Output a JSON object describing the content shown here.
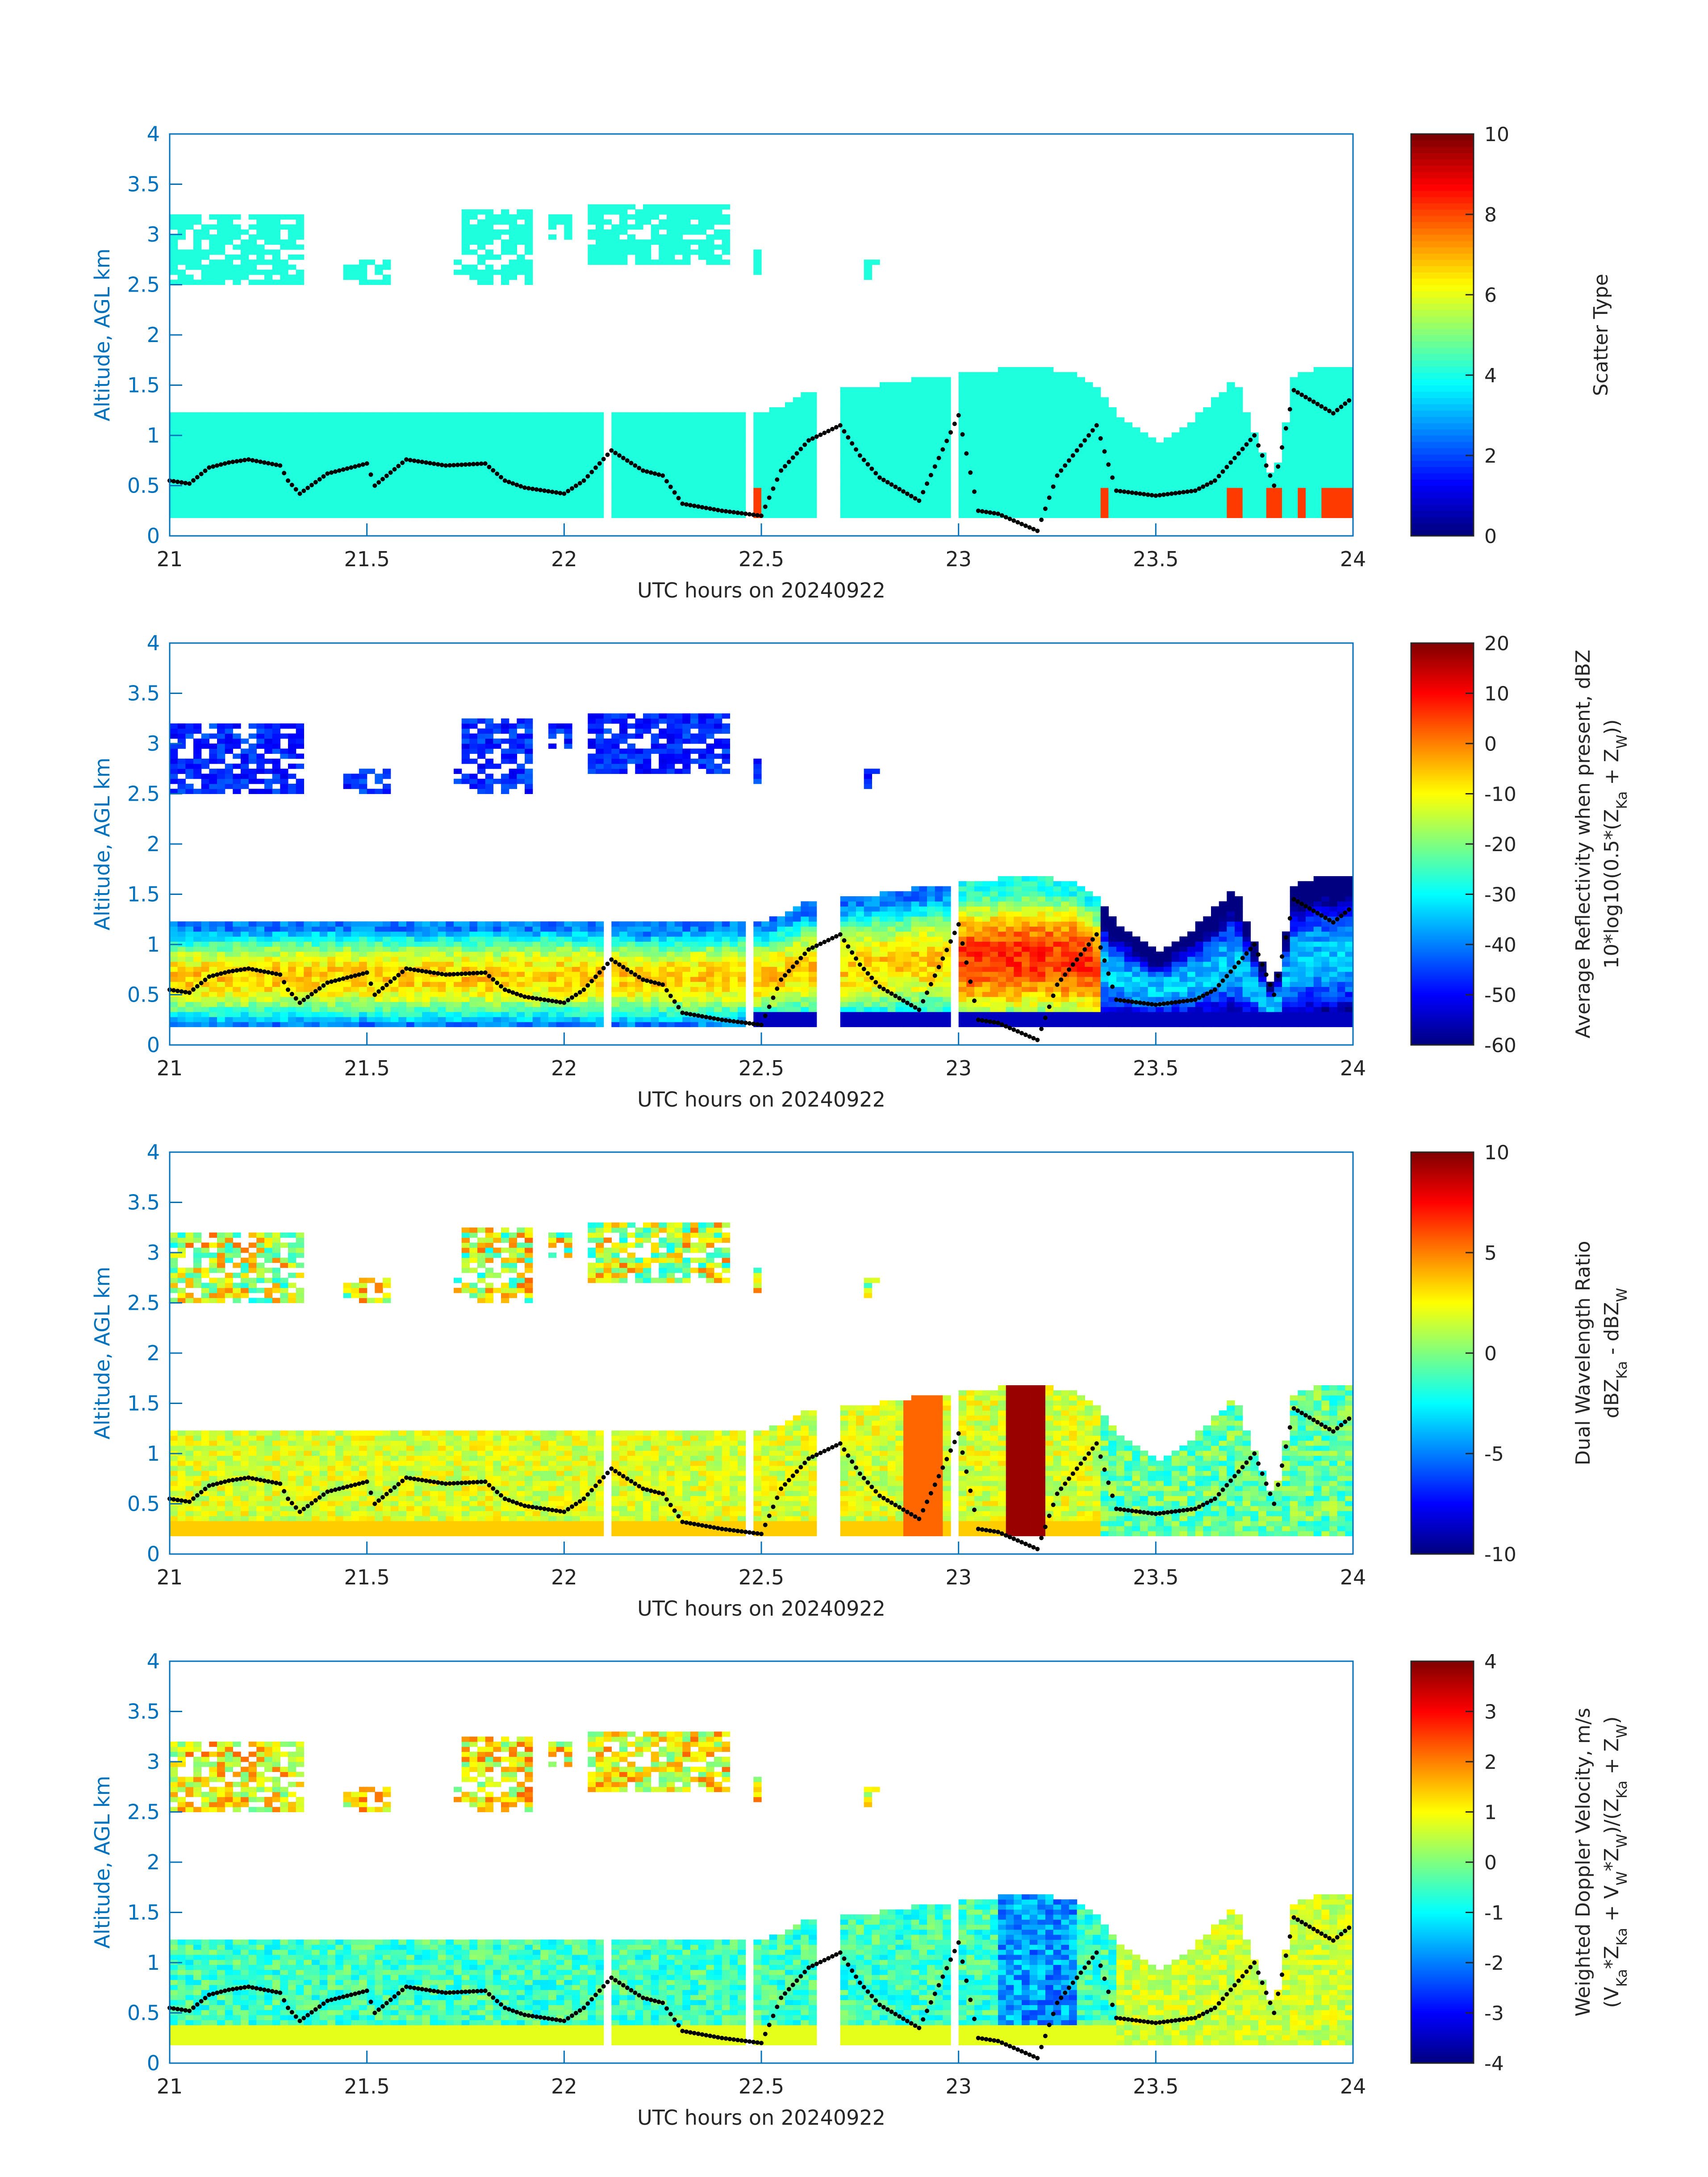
{
  "colors": {
    "axis": "#0072BD",
    "text": "#262626",
    "cloud_cyan": "#1EFFDE",
    "scatter_red": "#FF3A00",
    "points": "#000000",
    "frame": "#262626"
  },
  "chart_data": [
    {
      "type": "heatmap",
      "title": "",
      "xlabel": "UTC hours on 20240922",
      "ylabel": "Altitude, AGL km",
      "xlim": [
        21,
        24
      ],
      "ylim": [
        0,
        4
      ],
      "xticks": [
        21,
        21.5,
        22,
        22.5,
        23,
        23.5,
        24
      ],
      "yticks": [
        0,
        0.5,
        1,
        1.5,
        2,
        2.5,
        3,
        3.5,
        4
      ],
      "colorbar": {
        "label_lines": [
          "Scatter Type"
        ],
        "range": [
          0,
          10
        ],
        "ticks": [
          0,
          2,
          4,
          6,
          8,
          10
        ],
        "colormap": "jet"
      },
      "field": "scatter"
    },
    {
      "type": "heatmap",
      "title": "",
      "xlabel": "UTC hours on 20240922",
      "ylabel": "Altitude, AGL km",
      "xlim": [
        21,
        24
      ],
      "ylim": [
        0,
        4
      ],
      "xticks": [
        21,
        21.5,
        22,
        22.5,
        23,
        23.5,
        24
      ],
      "yticks": [
        0,
        0.5,
        1,
        1.5,
        2,
        2.5,
        3,
        3.5,
        4
      ],
      "colorbar": {
        "label_lines": [
          "Average Reflectivity when present, dBZ",
          "10*log10(0.5*(Z_Ka + Z_W))"
        ],
        "range": [
          -60,
          20
        ],
        "ticks": [
          -60,
          -50,
          -40,
          -30,
          -20,
          -10,
          0,
          10,
          20
        ],
        "colormap": "jet"
      },
      "field": "reflectivity"
    },
    {
      "type": "heatmap",
      "title": "",
      "xlabel": "UTC hours on 20240922",
      "ylabel": "Altitude, AGL km",
      "xlim": [
        21,
        24
      ],
      "ylim": [
        0,
        4
      ],
      "xticks": [
        21,
        21.5,
        22,
        22.5,
        23,
        23.5,
        24
      ],
      "yticks": [
        0,
        0.5,
        1,
        1.5,
        2,
        2.5,
        3,
        3.5,
        4
      ],
      "colorbar": {
        "label_lines": [
          "Dual Wavelength Ratio",
          "dBZ_Ka - dBZ_W"
        ],
        "range": [
          -10,
          10
        ],
        "ticks": [
          -10,
          -5,
          0,
          5,
          10
        ],
        "colormap": "jet"
      },
      "field": "dwr"
    },
    {
      "type": "heatmap",
      "title": "",
      "xlabel": "UTC hours on 20240922",
      "ylabel": "Altitude, AGL km",
      "xlim": [
        21,
        24
      ],
      "ylim": [
        0,
        4
      ],
      "xticks": [
        21,
        21.5,
        22,
        22.5,
        23,
        23.5,
        24
      ],
      "yticks": [
        0,
        0.5,
        1,
        1.5,
        2,
        2.5,
        3,
        3.5,
        4
      ],
      "colorbar": {
        "label_lines": [
          "Weighted Doppler Velocity, m/s",
          "(V_Ka*Z_Ka + V_W*Z_W)/(Z_Ka + Z_W)"
        ],
        "range": [
          -4,
          4
        ],
        "ticks": [
          -4,
          -3,
          -2,
          -1,
          0,
          1,
          2,
          3,
          4
        ],
        "colormap": "jet"
      },
      "field": "velocity"
    }
  ],
  "cloud_layers": {
    "low_base_km": 0.18,
    "low_top_km": [
      [
        21.0,
        1.2
      ],
      [
        21.1,
        1.2
      ],
      [
        21.2,
        1.22
      ],
      [
        21.4,
        1.23
      ],
      [
        21.6,
        1.22
      ],
      [
        21.8,
        1.22
      ],
      [
        22.0,
        1.23
      ],
      [
        22.1,
        1.22
      ],
      [
        22.2,
        1.18
      ],
      [
        22.4,
        1.22
      ],
      [
        22.45,
        1.22
      ],
      [
        22.5,
        1.2
      ],
      [
        22.55,
        1.28
      ],
      [
        22.6,
        1.38
      ],
      [
        22.7,
        1.45
      ],
      [
        22.8,
        1.48
      ],
      [
        22.9,
        1.55
      ],
      [
        23.0,
        1.58
      ],
      [
        23.1,
        1.63
      ],
      [
        23.2,
        1.65
      ],
      [
        23.3,
        1.6
      ],
      [
        23.35,
        1.45
      ],
      [
        23.4,
        1.2
      ],
      [
        23.5,
        0.9
      ],
      [
        23.6,
        1.15
      ],
      [
        23.7,
        1.55
      ],
      [
        23.75,
        1.0
      ],
      [
        23.8,
        0.5
      ],
      [
        23.85,
        1.55
      ],
      [
        23.9,
        1.65
      ],
      [
        24.0,
        1.65
      ]
    ],
    "low_gaps_hours": [
      [
        22.1,
        22.125
      ],
      [
        22.46,
        22.48
      ],
      [
        22.64,
        22.7
      ],
      [
        22.98,
        23.0
      ]
    ],
    "upper_segments": [
      [
        21.0,
        21.33,
        2.5,
        3.15
      ],
      [
        21.43,
        21.55,
        2.5,
        2.72
      ],
      [
        21.72,
        21.76,
        2.6,
        2.7
      ],
      [
        21.73,
        21.92,
        2.5,
        3.2
      ],
      [
        21.95,
        22.02,
        2.95,
        3.15
      ],
      [
        22.05,
        22.42,
        2.7,
        3.25
      ],
      [
        22.48,
        22.5,
        2.55,
        2.85
      ],
      [
        22.76,
        22.8,
        2.55,
        2.72
      ]
    ],
    "dotted_line_km": [
      [
        21.0,
        0.55
      ],
      [
        21.05,
        0.52
      ],
      [
        21.1,
        0.68
      ],
      [
        21.15,
        0.73
      ],
      [
        21.2,
        0.76
      ],
      [
        21.28,
        0.7
      ],
      [
        21.3,
        0.55
      ],
      [
        21.33,
        0.42
      ],
      [
        21.4,
        0.62
      ],
      [
        21.5,
        0.72
      ],
      [
        21.52,
        0.5
      ],
      [
        21.6,
        0.76
      ],
      [
        21.7,
        0.7
      ],
      [
        21.8,
        0.72
      ],
      [
        21.85,
        0.55
      ],
      [
        21.9,
        0.48
      ],
      [
        22.0,
        0.42
      ],
      [
        22.05,
        0.55
      ],
      [
        22.12,
        0.85
      ],
      [
        22.2,
        0.65
      ],
      [
        22.25,
        0.6
      ],
      [
        22.3,
        0.32
      ],
      [
        22.4,
        0.25
      ],
      [
        22.5,
        0.2
      ],
      [
        22.55,
        0.65
      ],
      [
        22.62,
        0.95
      ],
      [
        22.7,
        1.1
      ],
      [
        22.75,
        0.8
      ],
      [
        22.8,
        0.58
      ],
      [
        22.9,
        0.35
      ],
      [
        23.0,
        1.2
      ],
      [
        23.05,
        0.25
      ],
      [
        23.1,
        0.22
      ],
      [
        23.2,
        0.05
      ],
      [
        23.25,
        0.6
      ],
      [
        23.35,
        1.1
      ],
      [
        23.4,
        0.45
      ],
      [
        23.5,
        0.4
      ],
      [
        23.6,
        0.45
      ],
      [
        23.65,
        0.55
      ],
      [
        23.75,
        1.0
      ],
      [
        23.8,
        0.5
      ],
      [
        23.85,
        1.45
      ],
      [
        23.95,
        1.22
      ],
      [
        24.0,
        1.38
      ]
    ]
  }
}
